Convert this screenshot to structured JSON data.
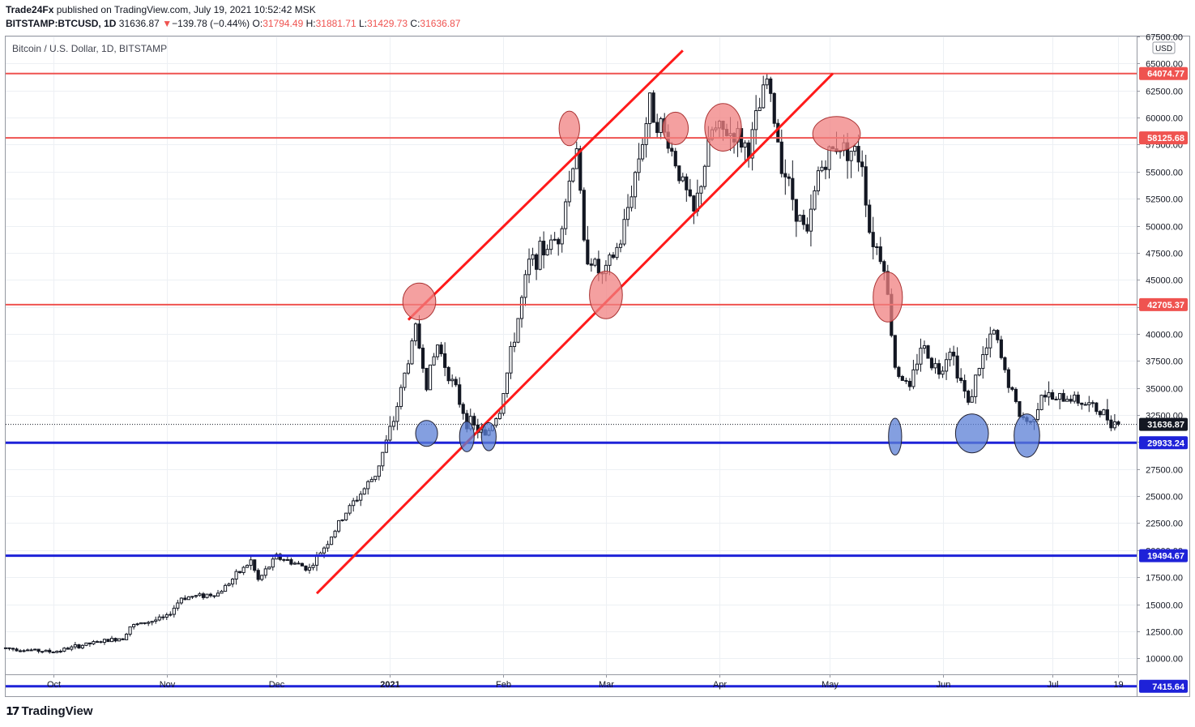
{
  "header": {
    "publisher": "Trade24Fx",
    "published_text": "published on TradingView.com, July 19, 2021 10:52:42 MSK",
    "symbol": "BITSTAMP:BTCUSD, 1D",
    "last": "31636.87",
    "change_arrow": "▼",
    "change": "−139.78 (−0.44%)",
    "o_label": "O:",
    "o": "31794.49",
    "h_label": "H:",
    "h": "31881.71",
    "l_label": "L:",
    "l": "31429.73",
    "c_label": "C:",
    "c": "31636.87"
  },
  "pane_title": "Bitcoin / U.S. Dollar, 1D, BITSTAMP",
  "currency_badge": "USD",
  "footer": {
    "brand": "TradingView",
    "icon": "tradingview-logo-icon"
  },
  "colors": {
    "resistance": "#ef5350",
    "support": "#1e22d8",
    "trend": "#ff1a1a",
    "bull": "#ffffff",
    "bear": "#131722",
    "grid": "#edf0f4",
    "red_marker_fill": "#f08080",
    "blue_marker_fill": "#5b7fd6"
  },
  "chart_data": {
    "type": "candlestick",
    "title": "Bitcoin / U.S. Dollar, 1D, BITSTAMP",
    "ylabel": "USD",
    "ylim": [
      6500,
      67500
    ],
    "y_ticks": [
      "10000.00",
      "12500.00",
      "15000.00",
      "17500.00",
      "20000.00",
      "22500.00",
      "25000.00",
      "27500.00",
      "30000.00",
      "32500.00",
      "35000.00",
      "37500.00",
      "40000.00",
      "42500.00",
      "45000.00",
      "47500.00",
      "50000.00",
      "52500.00",
      "55000.00",
      "57500.00",
      "60000.00",
      "62500.00",
      "65000.00",
      "67500.00"
    ],
    "x_ticks": [
      {
        "label": "Oct",
        "date": "2020-10-01"
      },
      {
        "label": "Nov",
        "date": "2020-11-01"
      },
      {
        "label": "Dec",
        "date": "2020-12-01"
      },
      {
        "label": "2021",
        "date": "2021-01-01"
      },
      {
        "label": "Feb",
        "date": "2021-02-01"
      },
      {
        "label": "Mar",
        "date": "2021-03-01"
      },
      {
        "label": "Apr",
        "date": "2021-04-01"
      },
      {
        "label": "May",
        "date": "2021-05-01"
      },
      {
        "label": "Jun",
        "date": "2021-06-01"
      },
      {
        "label": "Jul",
        "date": "2021-07-01"
      },
      {
        "label": "19",
        "date": "2021-07-19"
      }
    ],
    "x_range": [
      "2020-09-18",
      "2021-07-24"
    ],
    "price_anchors": [
      [
        "2020-09-18",
        10950
      ],
      [
        "2020-10-01",
        10600
      ],
      [
        "2020-10-10",
        11300
      ],
      [
        "2020-10-20",
        11900
      ],
      [
        "2020-10-22",
        12950
      ],
      [
        "2020-11-01",
        13800
      ],
      [
        "2020-11-05",
        15600
      ],
      [
        "2020-11-15",
        16000
      ],
      [
        "2020-11-24",
        19000
      ],
      [
        "2020-11-26",
        17200
      ],
      [
        "2020-12-01",
        19400
      ],
      [
        "2020-12-10",
        18300
      ],
      [
        "2020-12-16",
        21300
      ],
      [
        "2020-12-20",
        23500
      ],
      [
        "2020-12-28",
        27000
      ],
      [
        "2021-01-02",
        32000
      ],
      [
        "2021-01-08",
        40500
      ],
      [
        "2021-01-11",
        35500
      ],
      [
        "2021-01-14",
        39000
      ],
      [
        "2021-01-22",
        32000
      ],
      [
        "2021-01-27",
        30500
      ],
      [
        "2021-01-31",
        33000
      ],
      [
        "2021-02-08",
        46500
      ],
      [
        "2021-02-16",
        49000
      ],
      [
        "2021-02-21",
        57500
      ],
      [
        "2021-02-23",
        48000
      ],
      [
        "2021-02-28",
        45200
      ],
      [
        "2021-03-05",
        48500
      ],
      [
        "2021-03-13",
        61200
      ],
      [
        "2021-03-18",
        57800
      ],
      [
        "2021-03-25",
        51000
      ],
      [
        "2021-03-30",
        58800
      ],
      [
        "2021-04-05",
        58500
      ],
      [
        "2021-04-09",
        57000
      ],
      [
        "2021-04-14",
        63500
      ],
      [
        "2021-04-18",
        56000
      ],
      [
        "2021-04-22",
        51500
      ],
      [
        "2021-04-25",
        49000
      ],
      [
        "2021-04-28",
        55000
      ],
      [
        "2021-05-03",
        57500
      ],
      [
        "2021-05-07",
        57000
      ],
      [
        "2021-05-10",
        56000
      ],
      [
        "2021-05-12",
        49500
      ],
      [
        "2021-05-16",
        46500
      ],
      [
        "2021-05-19",
        37000
      ],
      [
        "2021-05-23",
        34800
      ],
      [
        "2021-05-26",
        39000
      ],
      [
        "2021-05-31",
        36500
      ],
      [
        "2021-06-03",
        38800
      ],
      [
        "2021-06-08",
        33500
      ],
      [
        "2021-06-11",
        37000
      ],
      [
        "2021-06-15",
        40200
      ],
      [
        "2021-06-18",
        36500
      ],
      [
        "2021-06-22",
        32500
      ],
      [
        "2021-06-25",
        31700
      ],
      [
        "2021-06-28",
        34500
      ],
      [
        "2021-07-02",
        33800
      ],
      [
        "2021-07-06",
        34200
      ],
      [
        "2021-07-12",
        33200
      ],
      [
        "2021-07-19",
        31636.87
      ]
    ],
    "horizontal_levels": [
      {
        "price": 64074.77,
        "label": "64074.77",
        "color": "red"
      },
      {
        "price": 58125.68,
        "label": "58125.68",
        "color": "red"
      },
      {
        "price": 42705.37,
        "label": "42705.37",
        "color": "red"
      },
      {
        "price": 29933.24,
        "label": "29933.24",
        "color": "blue"
      },
      {
        "price": 19494.67,
        "label": "19494.67",
        "color": "blue"
      },
      {
        "price": 7415.64,
        "label": "7415.64",
        "color": "blue"
      }
    ],
    "last_price": {
      "price": 31636.87,
      "label": "31636.87"
    },
    "trend_lines": [
      {
        "from": {
          "date": "2021-01-06",
          "price": 41300
        },
        "to": {
          "date": "2021-03-22",
          "price": 66200
        }
      },
      {
        "from": {
          "date": "2020-12-12",
          "price": 16000
        },
        "to": {
          "date": "2021-05-02",
          "price": 64074.77
        }
      }
    ],
    "markers": [
      {
        "date": "2021-01-09",
        "price": 43000,
        "color": "red",
        "rx_days": 4.5,
        "ry_price": 1700
      },
      {
        "date": "2021-02-19",
        "price": 59000,
        "color": "red",
        "rx_days": 2.8,
        "ry_price": 1600
      },
      {
        "date": "2021-03-01",
        "price": 43600,
        "color": "red",
        "rx_days": 4.5,
        "ry_price": 2200
      },
      {
        "date": "2021-03-20",
        "price": 59000,
        "color": "red",
        "rx_days": 3.5,
        "ry_price": 1500
      },
      {
        "date": "2021-04-02",
        "price": 59100,
        "color": "red",
        "rx_days": 5.0,
        "ry_price": 2200
      },
      {
        "date": "2021-05-03",
        "price": 58500,
        "color": "red",
        "rx_days": 6.5,
        "ry_price": 1600
      },
      {
        "date": "2021-05-17",
        "price": 43400,
        "color": "red",
        "rx_days": 4.0,
        "ry_price": 2300
      },
      {
        "date": "2021-01-11",
        "price": 30800,
        "color": "blue",
        "rx_days": 3.0,
        "ry_price": 1200
      },
      {
        "date": "2021-01-22",
        "price": 30500,
        "color": "blue",
        "rx_days": 2.0,
        "ry_price": 1400
      },
      {
        "date": "2021-01-28",
        "price": 30500,
        "color": "blue",
        "rx_days": 2.0,
        "ry_price": 1300
      },
      {
        "date": "2021-05-19",
        "price": 30500,
        "color": "blue",
        "rx_days": 1.8,
        "ry_price": 1700
      },
      {
        "date": "2021-06-09",
        "price": 30800,
        "color": "blue",
        "rx_days": 4.5,
        "ry_price": 1800
      },
      {
        "date": "2021-06-24",
        "price": 30600,
        "color": "blue",
        "rx_days": 3.5,
        "ry_price": 2000
      }
    ]
  }
}
